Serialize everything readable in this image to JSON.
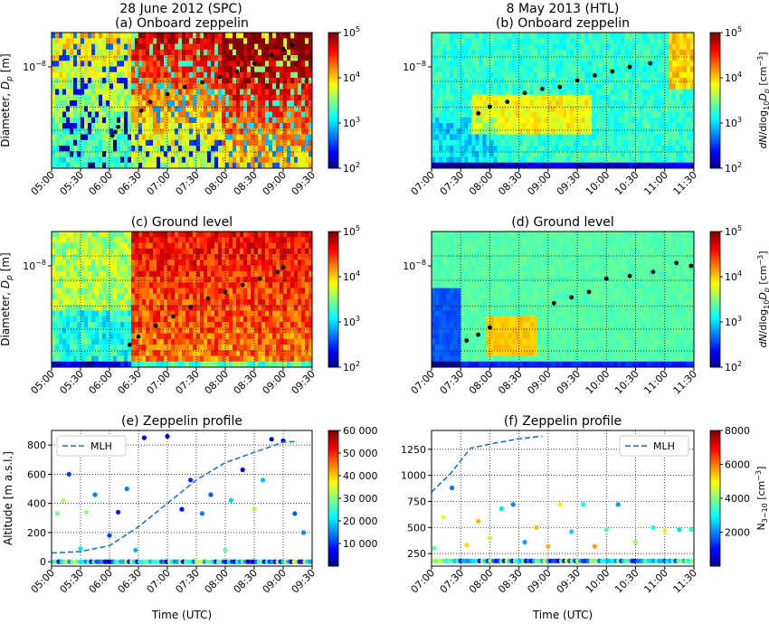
{
  "figure": {
    "headings": [
      "28 June 2012 (SPC)",
      "8 May 2013 (HTL)"
    ]
  },
  "chart_data": [
    {
      "type": "heatmap",
      "title": "(a) Onboard zeppelin",
      "ylabel": "Diameter, D_p [m]",
      "y_tick_label": "10^-8",
      "xticks": [
        "05:00",
        "05:30",
        "06:00",
        "06:30",
        "07:00",
        "07:30",
        "08:00",
        "08:30",
        "09:00",
        "09:30"
      ],
      "xlim": [
        "05:00",
        "09:30"
      ],
      "colorbar": {
        "scale": "log",
        "ticks": [
          "10^2",
          "10^3",
          "10^4",
          "10^5"
        ]
      },
      "mode_diameter_nm": [
        [
          6.05,
          3.9
        ],
        [
          6.1,
          4.1
        ],
        [
          6.15,
          4.4
        ],
        [
          6.55,
          5.5
        ],
        [
          6.7,
          6.2
        ],
        [
          7.0,
          6.9
        ],
        [
          7.3,
          7.6
        ],
        [
          7.6,
          8.1
        ],
        [
          7.9,
          8.7
        ],
        [
          8.2,
          9.4
        ],
        [
          8.5,
          10.5
        ],
        [
          8.8,
          11.8
        ],
        [
          9.0,
          12.8
        ],
        [
          9.15,
          13.5
        ]
      ]
    },
    {
      "type": "heatmap",
      "title": "(b) Onboard zeppelin",
      "xticks": [
        "07:00",
        "07:30",
        "08:00",
        "08:30",
        "09:00",
        "09:30",
        "10:00",
        "10:30",
        "11:00",
        "11:30"
      ],
      "xlim": [
        "07:00",
        "11:30"
      ],
      "colorbar": {
        "scale": "log",
        "ticks": [
          "10^2",
          "10^3",
          "10^4",
          "10^5"
        ],
        "label": "dN/dlog10 D_p [cm^-3]"
      },
      "mode_diameter_nm": [
        [
          7.8,
          5.3
        ],
        [
          8.0,
          5.8
        ],
        [
          8.3,
          6.2
        ],
        [
          8.6,
          7.0
        ],
        [
          8.9,
          7.4
        ],
        [
          9.2,
          7.6
        ],
        [
          9.5,
          8.3
        ],
        [
          9.8,
          8.9
        ],
        [
          10.1,
          9.4
        ],
        [
          10.4,
          10.0
        ],
        [
          10.75,
          10.5
        ]
      ]
    },
    {
      "type": "heatmap",
      "title": "(c) Ground level",
      "ylabel": "Diameter, D_p [m]",
      "xticks": [
        "05:00",
        "05:30",
        "06:00",
        "06:30",
        "07:00",
        "07:30",
        "08:00",
        "08:30",
        "09:00",
        "09:30"
      ],
      "xlim": [
        "05:00",
        "09:30"
      ],
      "colorbar": {
        "scale": "log",
        "ticks": [
          "10^2",
          "10^3",
          "10^4",
          "10^5"
        ]
      },
      "mode_diameter_nm": [
        [
          6.35,
          3.4
        ],
        [
          6.5,
          3.8
        ],
        [
          6.8,
          4.4
        ],
        [
          7.1,
          5.0
        ],
        [
          7.4,
          5.7
        ],
        [
          7.7,
          6.4
        ],
        [
          8.0,
          7.0
        ],
        [
          8.3,
          7.7
        ],
        [
          8.6,
          8.4
        ],
        [
          8.9,
          9.2
        ],
        [
          9.0,
          9.8
        ]
      ]
    },
    {
      "type": "heatmap",
      "title": "(d) Ground level",
      "xticks": [
        "07:00",
        "07:30",
        "08:00",
        "08:30",
        "09:00",
        "09:30",
        "10:00",
        "10:30",
        "11:00",
        "11:30"
      ],
      "xlim": [
        "07:00",
        "11:30"
      ],
      "colorbar": {
        "scale": "log",
        "ticks": [
          "10^2",
          "10^3",
          "10^4",
          "10^5"
        ],
        "label": "dN/dlog10 D_p [cm^-3]"
      },
      "mode_diameter_nm": [
        [
          7.6,
          3.6
        ],
        [
          7.8,
          3.9
        ],
        [
          8.0,
          4.3
        ],
        [
          9.1,
          6.0
        ],
        [
          9.4,
          6.5
        ],
        [
          9.7,
          7.0
        ],
        [
          10.0,
          8.4
        ],
        [
          10.4,
          8.7
        ],
        [
          10.8,
          9.2
        ],
        [
          11.2,
          10.4
        ],
        [
          11.45,
          10.0
        ]
      ]
    },
    {
      "type": "scatter",
      "title": "(e) Zeppelin profile",
      "ylabel": "Altitude [m a.s.l.]",
      "xlabel": "Time (UTC)",
      "xticks": [
        "05:00",
        "05:30",
        "06:00",
        "06:30",
        "07:00",
        "07:30",
        "08:00",
        "08:30",
        "09:00",
        "09:30"
      ],
      "yticks": [
        0,
        200,
        400,
        600,
        800
      ],
      "ylim": [
        -30,
        900
      ],
      "legend": {
        "entries": [
          "MLH"
        ],
        "placement": "top-left"
      },
      "colorbar": {
        "ticks": [
          "10 000",
          "20 000",
          "30 000",
          "40 000",
          "50 000",
          "60 000"
        ],
        "range": [
          0,
          60000
        ]
      },
      "mlh": [
        [
          5.0,
          60
        ],
        [
          5.5,
          70
        ],
        [
          6.0,
          110
        ],
        [
          6.5,
          240
        ],
        [
          7.0,
          400
        ],
        [
          7.5,
          560
        ],
        [
          8.0,
          680
        ],
        [
          8.5,
          750
        ],
        [
          9.0,
          820
        ],
        [
          9.25,
          825
        ]
      ],
      "profile_points": [
        [
          5.1,
          330
        ],
        [
          5.2,
          420
        ],
        [
          5.3,
          600
        ],
        [
          5.5,
          90
        ],
        [
          5.6,
          340
        ],
        [
          5.75,
          460
        ],
        [
          6.0,
          180
        ],
        [
          6.15,
          340
        ],
        [
          6.3,
          500
        ],
        [
          6.45,
          80
        ],
        [
          6.6,
          850
        ],
        [
          7.0,
          860
        ],
        [
          7.25,
          360
        ],
        [
          7.4,
          560
        ],
        [
          7.6,
          330
        ],
        [
          7.75,
          460
        ],
        [
          8.0,
          80
        ],
        [
          8.1,
          420
        ],
        [
          8.3,
          630
        ],
        [
          8.5,
          360
        ],
        [
          8.65,
          560
        ],
        [
          8.8,
          840
        ],
        [
          9.0,
          830
        ],
        [
          9.2,
          330
        ],
        [
          9.35,
          200
        ]
      ]
    },
    {
      "type": "scatter",
      "title": "(f) Zeppelin profile",
      "xlabel": "Time (UTC)",
      "xticks": [
        "07:00",
        "07:30",
        "08:00",
        "08:30",
        "09:00",
        "09:30",
        "10:00",
        "10:30",
        "11:00",
        "11:30"
      ],
      "yticks": [
        250,
        500,
        750,
        1000,
        1250
      ],
      "ylim": [
        130,
        1430
      ],
      "legend": {
        "entries": [
          "MLH"
        ],
        "placement": "top-right"
      },
      "colorbar": {
        "ticks": [
          "2000",
          "4000",
          "6000",
          "8000"
        ],
        "label": "N_3-10 [cm^-3]",
        "range": [
          0,
          8000
        ]
      },
      "mlh": [
        [
          7.0,
          840
        ],
        [
          7.33,
          1020
        ],
        [
          7.67,
          1260
        ],
        [
          8.0,
          1300
        ],
        [
          8.5,
          1350
        ],
        [
          8.9,
          1375
        ]
      ],
      "profile_points": [
        [
          7.05,
          300
        ],
        [
          7.2,
          600
        ],
        [
          7.35,
          880
        ],
        [
          7.6,
          330
        ],
        [
          7.8,
          560
        ],
        [
          8.0,
          400
        ],
        [
          8.2,
          680
        ],
        [
          8.4,
          720
        ],
        [
          8.6,
          360
        ],
        [
          8.8,
          500
        ],
        [
          9.0,
          320
        ],
        [
          9.2,
          720
        ],
        [
          9.4,
          460
        ],
        [
          9.6,
          720
        ],
        [
          9.8,
          320
        ],
        [
          10.0,
          480
        ],
        [
          10.2,
          720
        ],
        [
          10.5,
          360
        ],
        [
          10.8,
          500
        ],
        [
          11.0,
          470
        ],
        [
          11.25,
          480
        ],
        [
          11.45,
          480
        ]
      ]
    }
  ]
}
